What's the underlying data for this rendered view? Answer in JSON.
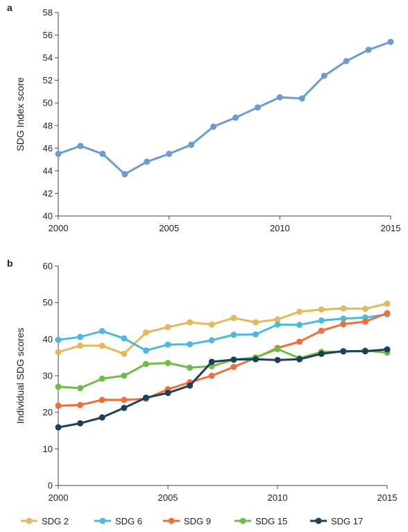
{
  "panels": {
    "a": {
      "label": "a"
    },
    "b": {
      "label": "b"
    }
  },
  "chart_data": [
    {
      "type": "line",
      "panel": "a",
      "x": [
        2000,
        2001,
        2002,
        2003,
        2004,
        2005,
        2006,
        2007,
        2008,
        2009,
        2010,
        2011,
        2012,
        2013,
        2014,
        2015
      ],
      "series": [
        {
          "values": [
            45.5,
            46.2,
            45.5,
            43.7,
            44.8,
            45.5,
            46.3,
            47.9,
            48.7,
            49.6,
            50.5,
            50.4,
            52.4,
            53.7,
            54.7,
            55.4
          ],
          "color": "#6a9bd2"
        }
      ],
      "title": "",
      "xlabel": "",
      "ylabel": "SDG Index score",
      "xlim": [
        2000,
        2015
      ],
      "ylim": [
        40,
        58
      ],
      "xticks": [
        2000,
        2005,
        2010,
        2015
      ],
      "yticks": [
        40,
        42,
        44,
        46,
        48,
        50,
        52,
        54,
        56,
        58
      ],
      "grid": false,
      "legend": "none"
    },
    {
      "type": "line",
      "panel": "b",
      "x": [
        2000,
        2001,
        2002,
        2003,
        2004,
        2005,
        2006,
        2007,
        2008,
        2009,
        2010,
        2011,
        2012,
        2013,
        2014,
        2015
      ],
      "series": [
        {
          "name": "SDG 2",
          "color": "#e6b85c",
          "values": [
            36.5,
            38.2,
            38.2,
            36.0,
            41.8,
            43.3,
            44.6,
            44.0,
            45.8,
            44.6,
            45.4,
            47.5,
            48.1,
            48.4,
            48.3,
            49.7
          ]
        },
        {
          "name": "SDG 6",
          "color": "#4db8e0",
          "values": [
            39.8,
            40.6,
            42.2,
            40.2,
            36.9,
            38.5,
            38.6,
            39.7,
            41.2,
            41.3,
            44.0,
            43.9,
            45.1,
            45.6,
            45.9,
            46.8
          ]
        },
        {
          "name": "SDG 9",
          "color": "#ec6f3c",
          "values": [
            21.8,
            22.0,
            23.4,
            23.4,
            23.7,
            26.3,
            28.2,
            30.0,
            32.4,
            34.9,
            37.6,
            39.3,
            42.3,
            44.1,
            44.8,
            47.1
          ]
        },
        {
          "name": "SDG 15",
          "color": "#6dbe45",
          "values": [
            27.0,
            26.6,
            29.2,
            30.0,
            33.2,
            33.5,
            32.2,
            32.6,
            34.4,
            35.0,
            37.3,
            34.8,
            36.5,
            36.6,
            36.9,
            36.3
          ]
        },
        {
          "name": "SDG 17",
          "color": "#1e3f5a",
          "values": [
            15.9,
            17.0,
            18.6,
            21.2,
            24.0,
            25.3,
            27.3,
            33.8,
            34.4,
            34.5,
            34.3,
            34.5,
            36.0,
            36.7,
            36.7,
            37.2
          ]
        }
      ],
      "title": "",
      "xlabel": "",
      "ylabel": "Individual SDG scores",
      "xlim": [
        2000,
        2015
      ],
      "ylim": [
        0,
        60
      ],
      "xticks": [
        2000,
        2005,
        2010,
        2015
      ],
      "yticks": [
        0,
        10,
        20,
        30,
        40,
        50,
        60
      ],
      "grid": false,
      "legend": "bottom"
    }
  ]
}
